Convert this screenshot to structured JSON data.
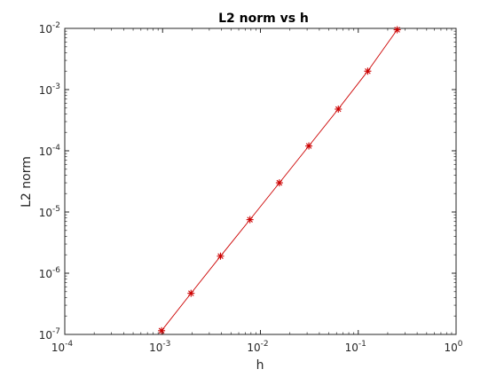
{
  "chart_data": {
    "type": "line",
    "title": "L2 norm vs h",
    "xlabel": "h",
    "ylabel": "L2 norm",
    "xscale": "log",
    "yscale": "log",
    "xlim": [
      0.0001,
      1
    ],
    "ylim": [
      1e-07,
      0.01
    ],
    "grid": false,
    "legend": "none",
    "x_ticks": [
      {
        "base": "10",
        "exp": "-4",
        "value": 0.0001
      },
      {
        "base": "10",
        "exp": "-3",
        "value": 0.001
      },
      {
        "base": "10",
        "exp": "-2",
        "value": 0.01
      },
      {
        "base": "10",
        "exp": "-1",
        "value": 0.1
      },
      {
        "base": "10",
        "exp": "0",
        "value": 1
      }
    ],
    "y_ticks": [
      {
        "base": "10",
        "exp": "-7",
        "value": 1e-07
      },
      {
        "base": "10",
        "exp": "-6",
        "value": 1e-06
      },
      {
        "base": "10",
        "exp": "-5",
        "value": 1e-05
      },
      {
        "base": "10",
        "exp": "-4",
        "value": 0.0001
      },
      {
        "base": "10",
        "exp": "-3",
        "value": 0.001
      },
      {
        "base": "10",
        "exp": "-2",
        "value": 0.01
      }
    ],
    "series": [
      {
        "color": "#cc0000",
        "marker": "asterisk",
        "x": [
          0.25,
          0.125,
          0.0625,
          0.03125,
          0.015625,
          0.0078125,
          0.00390625,
          0.001953125,
          0.0009765625
        ],
        "y": [
          0.0095,
          0.002,
          0.00048,
          0.00012,
          3e-05,
          7.5e-06,
          1.9e-06,
          4.7e-07,
          1.15e-07
        ]
      }
    ],
    "colors": {
      "axes": "#262626",
      "series": "#cc0000",
      "marker": "#cc0000"
    }
  }
}
